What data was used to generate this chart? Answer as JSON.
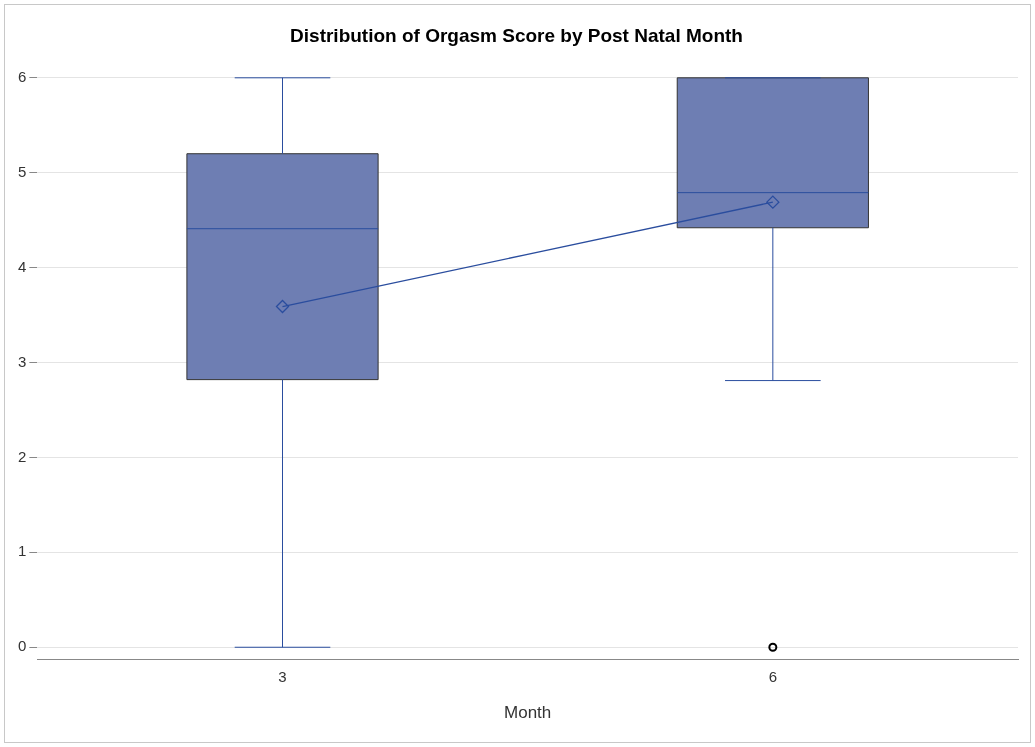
{
  "chart_data": {
    "type": "box",
    "title": "Distribution of Orgasm Score by Post Natal Month",
    "xlabel": "Month",
    "categories": [
      "3",
      "6"
    ],
    "series": [
      {
        "type": "box",
        "color": "#6e7eb3",
        "boxes": [
          {
            "low": 0,
            "q1": 2.82,
            "median": 4.41,
            "q3": 5.2,
            "high": 6
          },
          {
            "low": 2.81,
            "q1": 4.42,
            "median": 4.79,
            "q3": 6,
            "high": 6,
            "outliers": [
              0
            ]
          }
        ]
      },
      {
        "type": "line",
        "color": "#2a4d9e",
        "values": [
          3.59,
          4.69
        ],
        "marker": "diamond"
      }
    ],
    "ylim": [
      -0.13,
      6
    ],
    "yticks": [
      0,
      1,
      2,
      3,
      4,
      5,
      6
    ],
    "grid": "y",
    "legend": false
  }
}
